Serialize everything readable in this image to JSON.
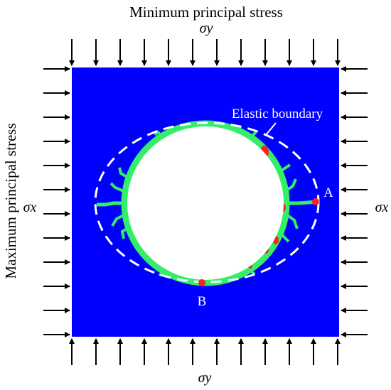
{
  "title_top": "Minimum principal stress",
  "title_left": "Maximum principal stress",
  "sigma_y_top": "σy",
  "sigma_y_bottom": "σy",
  "sigma_x_left": "σx",
  "sigma_x_right": "σx",
  "label_elastic": "Elastic boundary",
  "label_A": "A",
  "label_B": "B",
  "colors": {
    "rock": "#0000ff",
    "plastic_zone": "#33ee66",
    "damage": "#ff2020",
    "point": "#ff2020",
    "boundary": "#ffffff"
  }
}
